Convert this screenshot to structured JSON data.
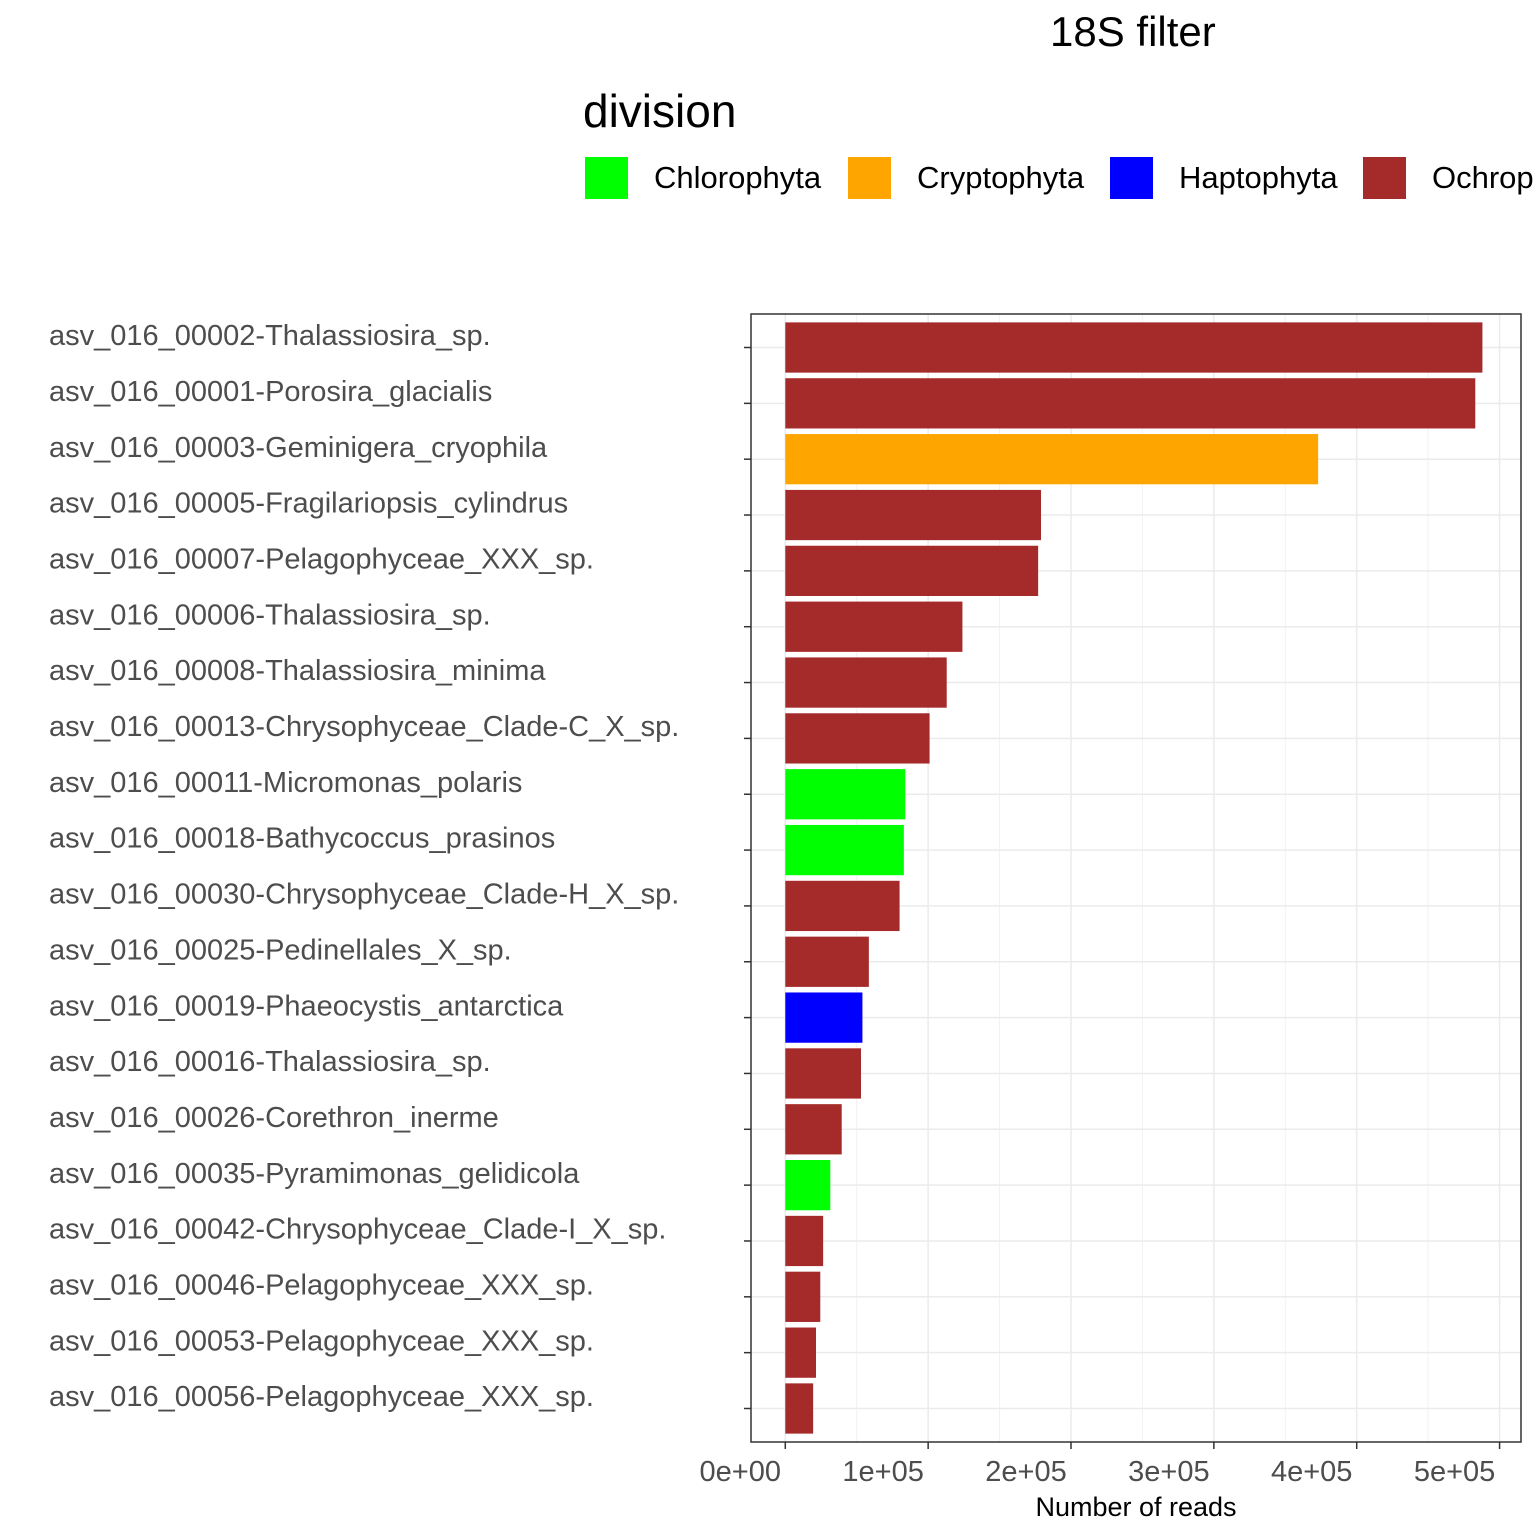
{
  "chart_data": {
    "type": "bar",
    "orientation": "horizontal",
    "title": "18S filter",
    "xlabel": "Number of reads",
    "ylabel": "",
    "xlim": [
      -24000,
      515000
    ],
    "x_ticks": [
      0,
      100000,
      200000,
      300000,
      400000,
      500000
    ],
    "x_tick_labels": [
      "0e+00",
      "1e+05",
      "2e+05",
      "3e+05",
      "4e+05",
      "5e+05"
    ],
    "grid": true,
    "legend": {
      "title": "division",
      "position": "top",
      "entries": [
        {
          "label": "Chlorophyta",
          "color": "#00ff00"
        },
        {
          "label": "Cryptophyta",
          "color": "#ffa500"
        },
        {
          "label": "Haptophyta",
          "color": "#0000ff"
        },
        {
          "label": "Ochrop",
          "color": "#a52a2a"
        }
      ]
    },
    "categories": [
      "asv_016_00002-Thalassiosira_sp.",
      "asv_016_00001-Porosira_glacialis",
      "asv_016_00003-Geminigera_cryophila",
      "asv_016_00005-Fragilariopsis_cylindrus",
      "asv_016_00007-Pelagophyceae_XXX_sp.",
      "asv_016_00006-Thalassiosira_sp.",
      "asv_016_00008-Thalassiosira_minima",
      "asv_016_00013-Chrysophyceae_Clade-C_X_sp.",
      "asv_016_00011-Micromonas_polaris",
      "asv_016_00018-Bathycoccus_prasinos",
      "asv_016_00030-Chrysophyceae_Clade-H_X_sp.",
      "asv_016_00025-Pedinellales_X_sp.",
      "asv_016_00019-Phaeocystis_antarctica",
      "asv_016_00016-Thalassiosira_sp.",
      "asv_016_00026-Corethron_inerme",
      "asv_016_00035-Pyramimonas_gelidicola",
      "asv_016_00042-Chrysophyceae_Clade-I_X_sp.",
      "asv_016_00046-Pelagophyceae_XXX_sp.",
      "asv_016_00053-Pelagophyceae_XXX_sp.",
      "asv_016_00056-Pelagophyceae_XXX_sp."
    ],
    "values": [
      488000,
      483000,
      373000,
      179000,
      177000,
      124000,
      113000,
      101000,
      84000,
      83000,
      80000,
      58500,
      54000,
      53000,
      39500,
      31500,
      26500,
      24500,
      21500,
      19500
    ],
    "colors": [
      "#a52a2a",
      "#a52a2a",
      "#ffa500",
      "#a52a2a",
      "#a52a2a",
      "#a52a2a",
      "#a52a2a",
      "#a52a2a",
      "#00ff00",
      "#00ff00",
      "#a52a2a",
      "#a52a2a",
      "#0000ff",
      "#a52a2a",
      "#a52a2a",
      "#00ff00",
      "#a52a2a",
      "#a52a2a",
      "#a52a2a",
      "#a52a2a"
    ]
  }
}
